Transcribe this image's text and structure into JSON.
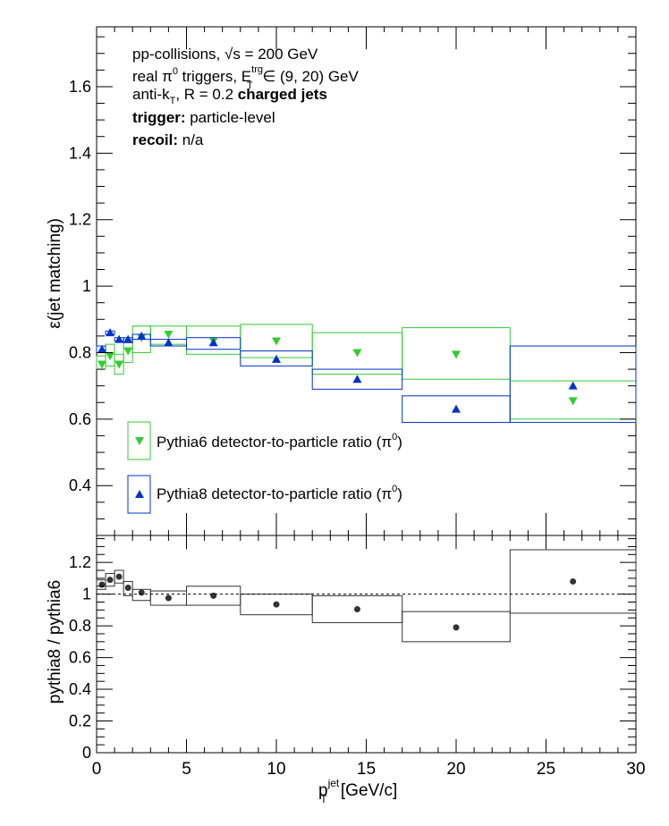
{
  "chart_data": [
    {
      "type": "scatter",
      "panel": "top",
      "ylabel": "ε(jet matching)",
      "xlim": [
        0,
        30
      ],
      "ylim": [
        0.25,
        1.78
      ],
      "yticks": [
        "0.4",
        "0.6",
        "0.8",
        "1",
        "1.2",
        "1.4",
        "1.6"
      ],
      "grid": false,
      "legend_position": "lower-left",
      "annotations": {
        "line1_a": "pp-collisions, ",
        "line1_b": "√s",
        "line1_c": " = 200 GeV",
        "line2_a": "real π",
        "line2_sup": "0",
        "line2_b": " triggers, E",
        "line2_sup2": "trg",
        "line2_sub": "T",
        "line2_c": " ∈ (9, 20) GeV",
        "line3_a": "anti-k",
        "line3_sub": "T",
        "line3_b": ", R = 0.2 ",
        "line3_bold": "charged jets",
        "line4_bold": "trigger:",
        "line4_text": " particle-level",
        "line5_bold": "recoil:",
        "line5_text": " n/a"
      },
      "series": [
        {
          "name": "Pythia6 detector-to-particle ratio (π",
          "name_sup": "0",
          "name_end": ")",
          "color": "#33cc33",
          "marker": "triangle-down",
          "x": [
            0.3,
            0.75,
            1.25,
            1.75,
            2.5,
            4.0,
            6.5,
            10.0,
            14.5,
            20.0,
            26.5
          ],
          "y": [
            0.765,
            0.79,
            0.765,
            0.805,
            0.845,
            0.855,
            0.835,
            0.835,
            0.8,
            0.795,
            0.655
          ],
          "sys_low": [
            0.75,
            0.76,
            0.735,
            0.77,
            0.8,
            0.825,
            0.795,
            0.785,
            0.735,
            0.72,
            0.6
          ],
          "sys_high": [
            0.79,
            0.825,
            0.795,
            0.84,
            0.88,
            0.88,
            0.88,
            0.885,
            0.86,
            0.875,
            0.715
          ],
          "x_edges": [
            [
              0,
              0.5
            ],
            [
              0.5,
              1.0
            ],
            [
              1.0,
              1.5
            ],
            [
              1.5,
              2.0
            ],
            [
              2.0,
              3.0
            ],
            [
              3.0,
              5.0
            ],
            [
              5.0,
              8.0
            ],
            [
              8.0,
              12.0
            ],
            [
              12.0,
              17.0
            ],
            [
              17.0,
              23.0
            ],
            [
              23.0,
              30.0
            ]
          ]
        },
        {
          "name": "Pythia8 detector-to-particle ratio (π",
          "name_sup": "0",
          "name_end": ")",
          "color": "#0033cc",
          "marker": "triangle-up",
          "x": [
            0.3,
            0.75,
            1.25,
            1.75,
            2.5,
            4.0,
            6.5,
            10.0,
            14.5,
            20.0,
            26.5
          ],
          "y": [
            0.81,
            0.86,
            0.84,
            0.84,
            0.85,
            0.83,
            0.83,
            0.78,
            0.72,
            0.63,
            0.7
          ],
          "sys_low": [
            0.8,
            0.855,
            0.835,
            0.83,
            0.84,
            0.82,
            0.81,
            0.76,
            0.69,
            0.59,
            0.59
          ],
          "sys_high": [
            0.82,
            0.865,
            0.845,
            0.845,
            0.855,
            0.84,
            0.845,
            0.805,
            0.75,
            0.67,
            0.82
          ],
          "x_edges": [
            [
              0,
              0.5
            ],
            [
              0.5,
              1.0
            ],
            [
              1.0,
              1.5
            ],
            [
              1.5,
              2.0
            ],
            [
              2.0,
              3.0
            ],
            [
              3.0,
              5.0
            ],
            [
              5.0,
              8.0
            ],
            [
              8.0,
              12.0
            ],
            [
              12.0,
              17.0
            ],
            [
              17.0,
              23.0
            ],
            [
              23.0,
              30.0
            ]
          ]
        }
      ]
    },
    {
      "type": "scatter",
      "panel": "bottom",
      "ylabel": "pythia8 / pythia6",
      "xlabel_a": "p",
      "xlabel_sup": "jet",
      "xlabel_sub": "T",
      "xlabel_b": " [GeV/c]",
      "xlim": [
        0,
        30
      ],
      "ylim": [
        0,
        1.37
      ],
      "xticks": [
        "0",
        "5",
        "10",
        "15",
        "20",
        "25",
        "30"
      ],
      "yticks": [
        "0",
        "0.2",
        "0.4",
        "0.6",
        "0.8",
        "1",
        "1.2"
      ],
      "reference_line": 1,
      "grid": false,
      "series": [
        {
          "name": "",
          "color": "#333333",
          "marker": "circle",
          "x": [
            0.3,
            0.75,
            1.25,
            1.75,
            2.5,
            4.0,
            6.5,
            10.0,
            14.5,
            20.0,
            26.5
          ],
          "y": [
            1.06,
            1.09,
            1.11,
            1.04,
            1.01,
            0.975,
            0.99,
            0.935,
            0.905,
            0.79,
            1.08
          ],
          "sys_low": [
            1.03,
            1.05,
            1.07,
            0.99,
            0.96,
            0.93,
            0.93,
            0.87,
            0.82,
            0.7,
            0.88
          ],
          "sys_high": [
            1.09,
            1.13,
            1.15,
            1.08,
            1.03,
            1.02,
            1.05,
            1.0,
            0.99,
            0.89,
            1.28
          ],
          "x_edges": [
            [
              0,
              0.5
            ],
            [
              0.5,
              1.0
            ],
            [
              1.0,
              1.5
            ],
            [
              1.5,
              2.0
            ],
            [
              2.0,
              3.0
            ],
            [
              3.0,
              5.0
            ],
            [
              5.0,
              8.0
            ],
            [
              8.0,
              12.0
            ],
            [
              12.0,
              17.0
            ],
            [
              17.0,
              23.0
            ],
            [
              23.0,
              30.0
            ]
          ]
        }
      ]
    }
  ]
}
